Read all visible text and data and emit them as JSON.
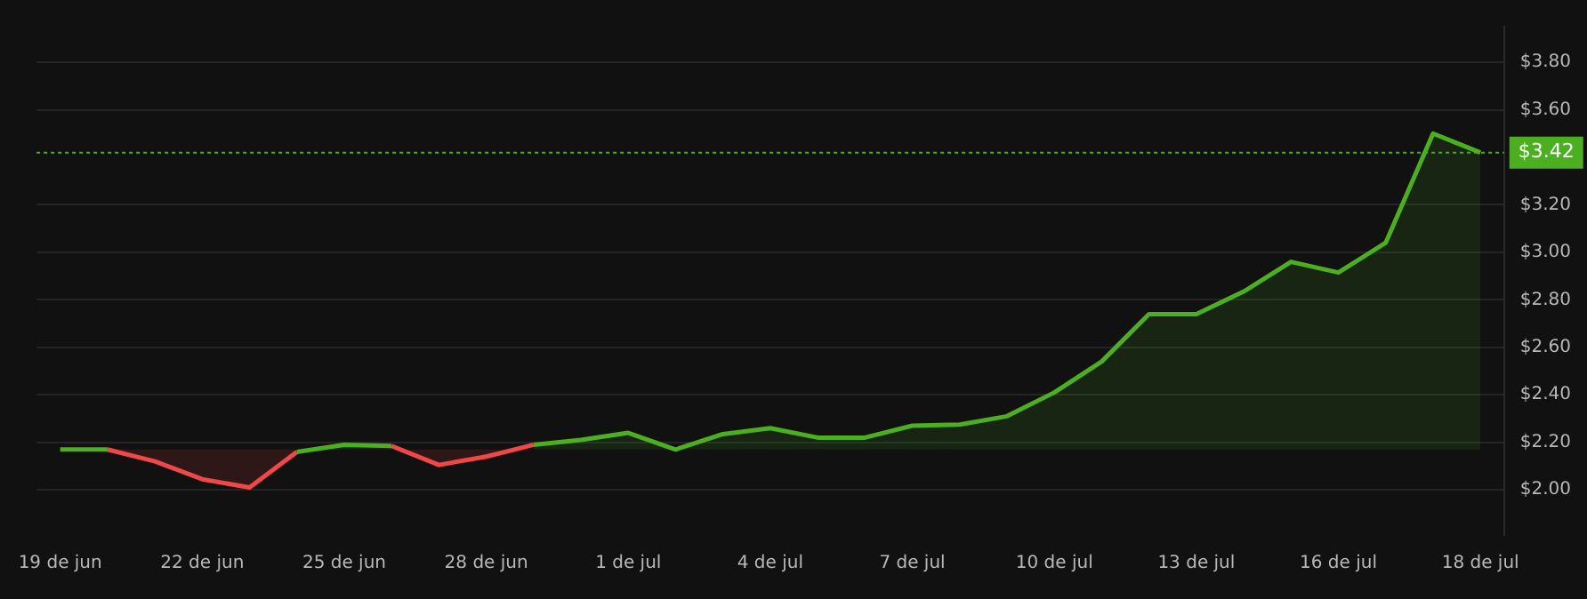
{
  "chart_data": {
    "type": "line",
    "categories": [
      "19 de jun",
      null,
      null,
      "22 de jun",
      null,
      null,
      "25 de jun",
      null,
      null,
      "28 de jun",
      null,
      null,
      "1 de jul",
      null,
      null,
      "4 de jul",
      null,
      null,
      "7 de jul",
      null,
      null,
      "10 de jul",
      null,
      null,
      "13 de jul",
      null,
      null,
      "16 de jul",
      null,
      null,
      "18 de jul"
    ],
    "series": [
      {
        "color": "#4caf1f",
        "values": [
          2.17,
          2.17,
          null,
          null,
          null,
          2.16,
          2.19,
          2.185,
          null,
          null,
          2.19,
          2.21,
          2.24,
          2.17,
          2.235,
          2.26,
          2.22,
          2.22,
          2.27,
          2.275,
          2.31,
          2.41,
          2.54,
          2.74,
          2.74,
          2.835,
          2.96,
          2.915,
          3.04,
          3.5,
          3.42
        ],
        "lower": [
          null,
          null,
          null,
          null,
          null,
          2.16,
          2.17,
          2.17,
          null,
          null,
          2.17,
          2.17,
          2.17,
          2.17,
          2.17,
          2.17,
          2.17,
          2.17,
          2.17,
          2.17,
          2.17,
          2.17,
          2.17,
          2.17,
          2.17,
          2.17,
          2.17,
          2.17,
          2.17,
          2.17,
          2.17
        ],
        "upper": [
          null,
          null,
          null,
          null,
          null,
          2.16,
          2.19,
          2.185,
          null,
          null,
          2.19,
          2.21,
          2.24,
          2.17,
          2.235,
          2.26,
          2.22,
          2.22,
          2.27,
          2.275,
          2.31,
          2.41,
          2.54,
          2.74,
          2.74,
          2.835,
          2.96,
          2.915,
          3.04,
          3.5,
          3.42
        ]
      },
      {
        "color": "#f04848",
        "values": [
          null,
          2.17,
          2.12,
          2.045,
          2.01,
          2.16,
          null,
          2.185,
          2.105,
          2.14,
          2.19,
          null,
          null,
          null,
          null,
          null,
          null,
          null,
          null,
          null,
          null,
          null,
          null,
          null,
          null,
          null,
          null,
          null,
          null,
          null,
          null
        ],
        "lower": [
          null,
          2.17,
          2.12,
          2.045,
          2.01,
          2.16,
          null,
          2.17,
          2.105,
          2.14,
          2.17,
          null,
          null,
          null,
          null,
          null,
          null,
          null,
          null,
          null,
          null,
          null,
          null,
          null,
          null,
          null,
          null,
          null,
          null,
          null,
          null
        ],
        "upper": [
          null,
          2.17,
          2.17,
          2.17,
          2.17,
          2.17,
          null,
          2.17,
          2.17,
          2.17,
          2.17,
          null,
          null,
          null,
          null,
          null,
          null,
          null,
          null,
          null,
          null,
          null,
          null,
          null,
          null,
          null,
          null,
          null,
          null,
          null,
          null
        ]
      }
    ],
    "ylim": [
      1.81,
      3.95
    ],
    "yticks": [
      {
        "value": 2,
        "label": "$2.00"
      },
      {
        "value": 2.2,
        "label": "$2.20"
      },
      {
        "value": 2.4,
        "label": "$2.40"
      },
      {
        "value": 2.6,
        "label": "$2.60"
      },
      {
        "value": 2.8,
        "label": "$2.80"
      },
      {
        "value": 3,
        "label": "$3.00"
      },
      {
        "value": 3.2,
        "label": "$3.20"
      },
      {
        "value": 3.6,
        "label": "$3.60"
      },
      {
        "value": 3.8,
        "label": "$3.80"
      }
    ],
    "grid": "y",
    "legend": false,
    "marker": "none",
    "line_style": "solid",
    "ref_lines": [
      {
        "axis": "y",
        "value": 3.42,
        "label": "$3.42",
        "color": "#4caf1f",
        "line_style": "dotted"
      }
    ]
  }
}
